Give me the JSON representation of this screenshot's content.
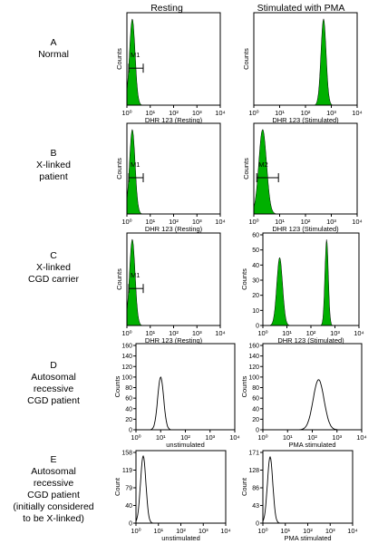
{
  "columns": [
    "Resting",
    "Stimulated with PMA"
  ],
  "rows": [
    {
      "letter": "A",
      "label": "Normal"
    },
    {
      "letter": "B",
      "label": "X-linked\npatient"
    },
    {
      "letter": "C",
      "label": "X-linked\nCGD carrier"
    },
    {
      "letter": "D",
      "label": "Autosomal\nrecessive\nCGD patient"
    },
    {
      "letter": "E",
      "label": "Autosomal\nrecessive\nCGD patient\n(initially considered\nto be X-linked)"
    }
  ],
  "colors": {
    "fill": "#00b000",
    "line": "#000000"
  },
  "chart_data": [
    {
      "id": "A-rest",
      "type": "area",
      "style": "filled",
      "xscale": "log",
      "xlim": [
        1,
        10000
      ],
      "xticks": [
        "10⁰",
        "10¹",
        "10²",
        "10³",
        "10⁴"
      ],
      "xlabel": "DHR 123 (Resting)",
      "ylabel": "Counts",
      "yticks": [],
      "marker": {
        "label": "M1",
        "range": [
          1.2,
          5
        ]
      },
      "peaks": [
        {
          "center": 1.7,
          "height": 1.0,
          "width": 0.12
        }
      ]
    },
    {
      "id": "A-stim",
      "type": "area",
      "style": "filled",
      "xscale": "log",
      "xlim": [
        1,
        10000
      ],
      "xticks": [
        "10⁰",
        "10¹",
        "10²",
        "10³",
        "10⁴"
      ],
      "xlabel": "DHR 123 (Stimulated)",
      "ylabel": "Counts",
      "yticks": [],
      "peaks": [
        {
          "center": 500,
          "height": 1.0,
          "width": 0.1
        }
      ]
    },
    {
      "id": "B-rest",
      "type": "area",
      "style": "filled",
      "xscale": "log",
      "xlim": [
        1,
        10000
      ],
      "xticks": [
        "10⁰",
        "10¹",
        "10²",
        "10³",
        "10⁴"
      ],
      "xlabel": "DHR 123 (Resting)",
      "ylabel": "Counts",
      "yticks": [],
      "marker": {
        "label": "M1",
        "range": [
          1.2,
          5
        ]
      },
      "peaks": [
        {
          "center": 1.7,
          "height": 1.0,
          "width": 0.12
        }
      ]
    },
    {
      "id": "B-stim",
      "type": "area",
      "style": "filled",
      "xscale": "log",
      "xlim": [
        1,
        10000
      ],
      "xticks": [
        "10⁰",
        "10¹",
        "10²",
        "10³",
        "10⁴"
      ],
      "xlabel": "DHR 123 (Stimulated)",
      "ylabel": "Counts",
      "yticks": [],
      "marker": {
        "label": "M2",
        "range": [
          1.3,
          9
        ]
      },
      "peaks": [
        {
          "center": 2.2,
          "height": 1.0,
          "width": 0.15
        }
      ]
    },
    {
      "id": "C-rest",
      "type": "area",
      "style": "filled",
      "xscale": "log",
      "xlim": [
        1,
        10000
      ],
      "xticks": [
        "10⁰",
        "10¹",
        "10²",
        "10³",
        "10⁴"
      ],
      "xlabel": "DHR 123 (Resting)",
      "ylabel": "Counts",
      "yticks": [],
      "marker": {
        "label": "M1",
        "range": [
          1.2,
          5
        ]
      },
      "peaks": [
        {
          "center": 1.7,
          "height": 1.0,
          "width": 0.12
        }
      ]
    },
    {
      "id": "C-stim",
      "type": "area",
      "style": "filled",
      "xscale": "log",
      "xlim": [
        1,
        10000
      ],
      "xticks": [
        "10⁰",
        "10¹",
        "10²",
        "10³",
        "10⁴"
      ],
      "xlabel": "DHR 123 (Stimulated)",
      "ylabel": "Counts",
      "yticks": [
        "0",
        "10",
        "20",
        "30",
        "40",
        "50",
        "60"
      ],
      "ylim": [
        0,
        60
      ],
      "peaks": [
        {
          "center": 5,
          "height": 45,
          "width": 0.12
        },
        {
          "center": 450,
          "height": 57,
          "width": 0.07
        }
      ]
    },
    {
      "id": "D-rest",
      "type": "line",
      "style": "outline",
      "xscale": "log",
      "xlim": [
        1,
        10000
      ],
      "xticks": [
        "10⁰",
        "10¹",
        "10²",
        "10³",
        "10⁴"
      ],
      "xlabel": "unstimulated",
      "ylabel": "Counts",
      "yticks": [
        "0",
        "20",
        "40",
        "60",
        "80",
        "100",
        "120",
        "140",
        "160"
      ],
      "ylim": [
        0,
        160
      ],
      "peaks": [
        {
          "center": 10,
          "height": 100,
          "width": 0.12
        }
      ]
    },
    {
      "id": "D-stim",
      "type": "line",
      "style": "outline",
      "xscale": "log",
      "xlim": [
        1,
        10000
      ],
      "xticks": [
        "10⁰",
        "10¹",
        "10²",
        "10³",
        "10⁴"
      ],
      "xlabel": "PMA stimulated",
      "ylabel": "Counts",
      "yticks": [
        "0",
        "20",
        "40",
        "60",
        "80",
        "100",
        "120",
        "140",
        "160"
      ],
      "ylim": [
        0,
        160
      ],
      "peaks": [
        {
          "center": 180,
          "height": 95,
          "width": 0.22
        }
      ]
    },
    {
      "id": "E-rest",
      "type": "line",
      "style": "outline",
      "xscale": "log",
      "xlim": [
        1,
        10000
      ],
      "xticks": [
        "10⁰",
        "10¹",
        "10²",
        "10³",
        "10⁴"
      ],
      "xlabel": "unstimulated",
      "ylabel": "Count",
      "yticks": [
        "0",
        "40",
        "79",
        "119",
        "158"
      ],
      "ylim": [
        0,
        158
      ],
      "peaks": [
        {
          "center": 2.1,
          "height": 150,
          "width": 0.12
        }
      ]
    },
    {
      "id": "E-stim",
      "type": "line",
      "style": "outline",
      "xscale": "log",
      "xlim": [
        1,
        10000
      ],
      "xticks": [
        "10⁰",
        "10¹",
        "10²",
        "10³",
        "10⁴"
      ],
      "xlabel": "PMA stimulated",
      "ylabel": "Count",
      "yticks": [
        "0",
        "43",
        "86",
        "128",
        "171"
      ],
      "ylim": [
        0,
        171
      ],
      "peaks": [
        {
          "center": 2.1,
          "height": 160,
          "width": 0.12
        }
      ]
    }
  ]
}
